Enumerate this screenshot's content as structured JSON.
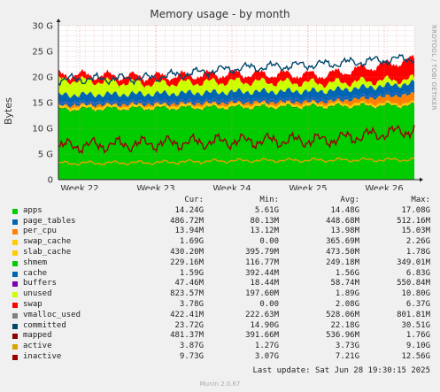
{
  "title": "Memory usage - by month",
  "side_text": "RRDTOOL / TOBI OETIKER",
  "ylabel": "Bytes",
  "footer_update": "Last update: Sat Jun 28 19:30:15 2025",
  "footer_munin": "Munin 2.0.67",
  "legend_headers": [
    "Cur:",
    "Min:",
    "Avg:",
    "Max:"
  ],
  "legend": [
    {
      "name": "apps",
      "color": "#00cc00",
      "cur": "14.24G",
      "min": "5.61G",
      "avg": "14.48G",
      "max": "17.08G"
    },
    {
      "name": "page_tables",
      "color": "#0066b3",
      "cur": "486.72M",
      "min": "80.13M",
      "avg": "448.68M",
      "max": "512.16M"
    },
    {
      "name": "per_cpu",
      "color": "#ff8000",
      "cur": "13.94M",
      "min": "13.12M",
      "avg": "13.98M",
      "max": "15.03M"
    },
    {
      "name": "swap_cache",
      "color": "#ffcc00",
      "cur": "1.69G",
      "min": "0.00",
      "avg": "365.69M",
      "max": "2.26G"
    },
    {
      "name": "slab_cache",
      "color": "#ffcc00",
      "cur": "430.20M",
      "min": "395.79M",
      "avg": "473.50M",
      "max": "1.78G"
    },
    {
      "name": "shmem",
      "color": "#00cc00",
      "cur": "229.16M",
      "min": "116.77M",
      "avg": "249.18M",
      "max": "349.01M"
    },
    {
      "name": "cache",
      "color": "#0066b3",
      "cur": "1.59G",
      "min": "392.44M",
      "avg": "1.56G",
      "max": "6.83G"
    },
    {
      "name": "buffers",
      "color": "#7b00b4",
      "cur": "47.46M",
      "min": "18.44M",
      "avg": "58.74M",
      "max": "550.84M"
    },
    {
      "name": "unused",
      "color": "#ccff00",
      "cur": "823.57M",
      "min": "197.60M",
      "avg": "1.89G",
      "max": "10.80G"
    },
    {
      "name": "swap",
      "color": "#ff0000",
      "cur": "3.78G",
      "min": "0.00",
      "avg": "2.08G",
      "max": "6.37G"
    },
    {
      "name": "vmalloc_used",
      "color": "#808080",
      "cur": "422.41M",
      "min": "222.63M",
      "avg": "528.06M",
      "max": "801.81M"
    },
    {
      "name": "committed",
      "color": "#00476b",
      "cur": "23.72G",
      "min": "14.90G",
      "avg": "22.18G",
      "max": "30.51G"
    },
    {
      "name": "mapped",
      "color": "#8c0000",
      "cur": "481.37M",
      "min": "391.66M",
      "avg": "536.96M",
      "max": "1.76G"
    },
    {
      "name": "active",
      "color": "#d9a300",
      "cur": "3.87G",
      "min": "1.27G",
      "avg": "3.73G",
      "max": "9.10G"
    },
    {
      "name": "inactive",
      "color": "#990000",
      "cur": "9.73G",
      "min": "3.07G",
      "avg": "7.21G",
      "max": "12.56G"
    }
  ],
  "chart_data": {
    "type": "area",
    "title": "Memory usage - by month",
    "ylabel": "Bytes",
    "ylim": [
      0,
      30
    ],
    "yunit": "G",
    "yticks": [
      "0",
      "5 G",
      "10 G",
      "15 G",
      "20 G",
      "25 G",
      "30 G"
    ],
    "x": [
      "Week 22",
      "Week 23",
      "Week 24",
      "Week 25",
      "Week 26"
    ],
    "grid": true,
    "series": [
      {
        "name": "apps",
        "color": "#00cc00",
        "values": [
          13.5,
          13.7,
          13.9,
          14.1,
          14.3
        ]
      },
      {
        "name": "shmem",
        "color": "#00aa00",
        "values": [
          0.25,
          0.25,
          0.25,
          0.25,
          0.23
        ]
      },
      {
        "name": "slab_cache",
        "color": "#ffcc00",
        "values": [
          0.47,
          0.47,
          0.47,
          0.47,
          0.43
        ]
      },
      {
        "name": "swap_cache",
        "color": "#ff8000",
        "values": [
          0.3,
          0.3,
          0.4,
          0.4,
          1.7
        ]
      },
      {
        "name": "page_tables",
        "color": "#0066b3",
        "values": [
          0.45,
          0.45,
          0.45,
          0.45,
          0.49
        ]
      },
      {
        "name": "buffers",
        "color": "#7b00b4",
        "values": [
          0.06,
          0.06,
          0.06,
          0.06,
          0.05
        ]
      },
      {
        "name": "cache",
        "color": "#0066b3",
        "values": [
          1.5,
          1.5,
          1.6,
          1.6,
          1.6
        ]
      },
      {
        "name": "unused",
        "color": "#ccff00",
        "values": [
          3.0,
          2.0,
          2.0,
          1.5,
          0.8
        ]
      },
      {
        "name": "swap",
        "color": "#ff0000",
        "values": [
          1.0,
          1.3,
          1.5,
          1.6,
          3.8
        ]
      },
      {
        "name": "committed",
        "color": "#00476b",
        "values": [
          19.5,
          19.8,
          21.7,
          22.5,
          23.7
        ]
      },
      {
        "name": "inactive",
        "color": "#990000",
        "values": [
          6.5,
          7.0,
          7.5,
          7.7,
          9.7
        ]
      },
      {
        "name": "active",
        "color": "#d9a300",
        "values": [
          3.2,
          3.3,
          3.7,
          3.8,
          3.9
        ]
      }
    ]
  }
}
